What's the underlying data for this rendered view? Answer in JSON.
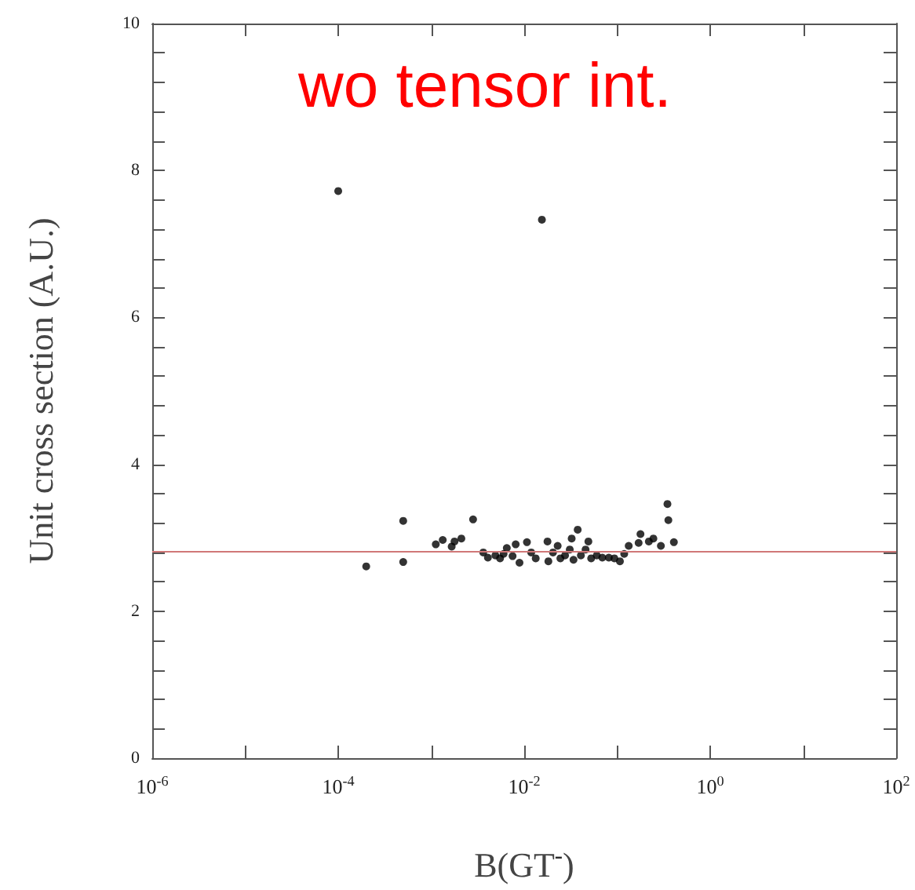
{
  "chart_data": {
    "type": "scatter",
    "title": "wo tensor int.",
    "xlabel": "B(GT$^{-}$)",
    "ylabel": "Unit cross section (A.U.)",
    "log": "x",
    "marker": "circle",
    "xlim": [
      1e-06,
      100
    ],
    "ylim": [
      0,
      10
    ],
    "xticks": [
      {
        "value": 1e-06,
        "label": "10$^{-6}$"
      },
      {
        "value": 1e-05,
        "label": null
      },
      {
        "value": 0.0001,
        "label": "10$^{-4}$"
      },
      {
        "value": 0.001,
        "label": null
      },
      {
        "value": 0.01,
        "label": "10$^{-2}$"
      },
      {
        "value": 0.1,
        "label": null
      },
      {
        "value": 1,
        "label": "10$^{0}$"
      },
      {
        "value": 10,
        "label": null
      },
      {
        "value": 100,
        "label": "10$^{2}$"
      }
    ],
    "yticks": [
      0,
      {
        "value": 0.4,
        "label": null
      },
      {
        "value": 0.8,
        "label": null
      },
      {
        "value": 1.2,
        "label": null
      },
      {
        "value": 1.6,
        "label": null
      },
      2,
      {
        "value": 2.4,
        "label": null
      },
      {
        "value": 2.8,
        "label": null
      },
      {
        "value": 3.2,
        "label": null
      },
      {
        "value": 3.6,
        "label": null
      },
      4,
      {
        "value": 4.4,
        "label": null
      },
      {
        "value": 4.8,
        "label": null
      },
      {
        "value": 5.2,
        "label": null
      },
      {
        "value": 5.6,
        "label": null
      },
      6,
      {
        "value": 6.4,
        "label": null
      },
      {
        "value": 6.8,
        "label": null
      },
      {
        "value": 7.2,
        "label": null
      },
      {
        "value": 7.6,
        "label": null
      },
      8,
      {
        "value": 8.4,
        "label": null
      },
      {
        "value": 8.8,
        "label": null
      },
      {
        "value": 9.2,
        "label": null
      },
      {
        "value": 9.6,
        "label": null
      },
      10
    ],
    "ref_lines": [
      {
        "axis": "y",
        "value": 2.82,
        "color": "#d07878"
      }
    ],
    "series": [
      {
        "color": "#000000",
        "x": [
          0.0001,
          0.0155,
          0.0002,
          0.0005,
          0.0005,
          0.00112,
          0.00133,
          0.00166,
          0.00178,
          0.00211,
          0.00282,
          0.00363,
          0.00407,
          0.0049,
          0.0055,
          0.006,
          0.0065,
          0.0075,
          0.0081,
          0.0089,
          0.0107,
          0.0119,
          0.0133,
          0.0178,
          0.0182,
          0.0204,
          0.0229,
          0.0245,
          0.0275,
          0.0309,
          0.0324,
          0.0339,
          0.0376,
          0.0407,
          0.0457,
          0.049,
          0.0525,
          0.0603,
          0.0692,
          0.0813,
          0.0933,
          0.107,
          0.119,
          0.133,
          0.17,
          0.178,
          0.219,
          0.245,
          0.295,
          0.347,
          0.355,
          0.407
        ],
        "values": [
          7.72,
          7.33,
          2.61,
          3.23,
          2.67,
          2.91,
          2.97,
          2.88,
          2.95,
          2.99,
          3.25,
          2.8,
          2.73,
          2.76,
          2.72,
          2.78,
          2.86,
          2.75,
          2.91,
          2.66,
          2.94,
          2.8,
          2.72,
          2.95,
          2.68,
          2.8,
          2.89,
          2.72,
          2.76,
          2.84,
          2.99,
          2.7,
          3.11,
          2.76,
          2.84,
          2.95,
          2.72,
          2.76,
          2.73,
          2.73,
          2.72,
          2.68,
          2.78,
          2.89,
          2.93,
          3.05,
          2.95,
          2.99,
          2.89,
          3.46,
          3.24,
          2.94
        ]
      }
    ]
  }
}
